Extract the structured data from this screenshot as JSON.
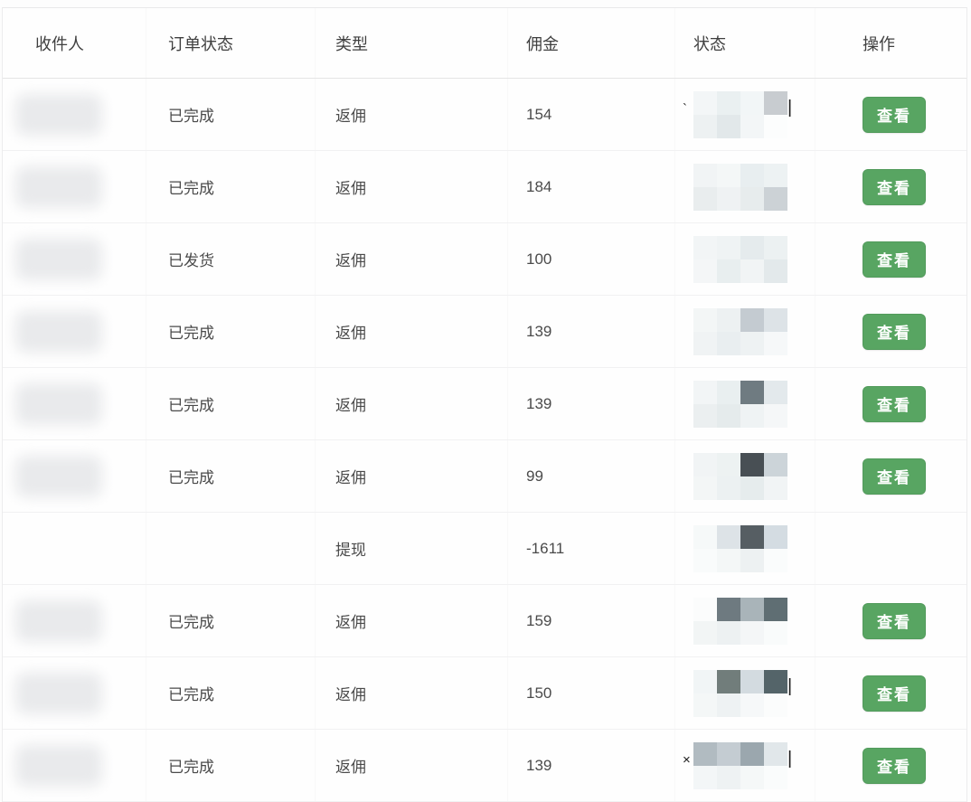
{
  "table": {
    "columns": [
      "收件人",
      "订单状态",
      "类型",
      "佣金",
      "状态",
      "操作"
    ],
    "action_label": "查看",
    "rows": [
      {
        "order_status": "已完成",
        "type": "返佣",
        "commission": "154",
        "recipient_redacted": true,
        "status_redacted": true,
        "has_action": true,
        "mark_left": "`",
        "mark_right": "|",
        "mosaic_top": [
          "#f3f6f7",
          "#eaf0f1",
          "#f2f6f7",
          "#c8ccd0"
        ],
        "mosaic_bottom": [
          "#edf1f2",
          "#e2e8ea",
          "#f3f6f7",
          "#fcfdfd"
        ]
      },
      {
        "order_status": "已完成",
        "type": "返佣",
        "commission": "184",
        "recipient_redacted": true,
        "status_redacted": true,
        "has_action": true,
        "mark_left": "",
        "mark_right": "",
        "mosaic_top": [
          "#f1f4f5",
          "#f4f7f7",
          "#e8eef0",
          "#edf2f3"
        ],
        "mosaic_bottom": [
          "#e9edee",
          "#eff2f3",
          "#e7eced",
          "#ccd2d6"
        ]
      },
      {
        "order_status": "已发货",
        "type": "返佣",
        "commission": "100",
        "recipient_redacted": true,
        "status_redacted": true,
        "has_action": true,
        "mark_left": "",
        "mark_right": "",
        "mosaic_top": [
          "#f2f5f6",
          "#eff3f4",
          "#e5ebed",
          "#ecf1f2"
        ],
        "mosaic_bottom": [
          "#f4f6f7",
          "#e8eeef",
          "#f1f4f5",
          "#e3e9eb"
        ]
      },
      {
        "order_status": "已完成",
        "type": "返佣",
        "commission": "139",
        "recipient_redacted": true,
        "status_redacted": true,
        "has_action": true,
        "mark_left": "",
        "mark_right": "",
        "mosaic_top": [
          "#f3f6f6",
          "#edf1f2",
          "#c4cbd1",
          "#dde3e7"
        ],
        "mosaic_bottom": [
          "#f0f3f4",
          "#e9eef0",
          "#eef2f3",
          "#f6f8f9"
        ]
      },
      {
        "order_status": "已完成",
        "type": "返佣",
        "commission": "139",
        "recipient_redacted": true,
        "status_redacted": true,
        "has_action": true,
        "mark_left": "",
        "mark_right": "",
        "mosaic_top": [
          "#f2f5f6",
          "#e9eff0",
          "#6f7b81",
          "#e3e9ec"
        ],
        "mosaic_bottom": [
          "#ebeff0",
          "#e5ebec",
          "#eff3f4",
          "#f5f7f8"
        ]
      },
      {
        "order_status": "已完成",
        "type": "返佣",
        "commission": "99",
        "recipient_redacted": true,
        "status_redacted": true,
        "has_action": true,
        "mark_left": "",
        "mark_right": "",
        "mosaic_top": [
          "#f1f4f5",
          "#edf2f2",
          "#484f54",
          "#ccd4d9"
        ],
        "mosaic_bottom": [
          "#f3f6f6",
          "#ecf1f2",
          "#e6eced",
          "#f1f4f5"
        ]
      },
      {
        "order_status": "",
        "type": "提现",
        "commission": "-1611",
        "recipient_redacted": false,
        "status_redacted": true,
        "has_action": false,
        "mark_left": "",
        "mark_right": "",
        "mosaic_top": [
          "#f6f9f9",
          "#dde3e7",
          "#565e63",
          "#d4dce2"
        ],
        "mosaic_bottom": [
          "#f9fbfb",
          "#f4f7f7",
          "#edf1f2",
          "#fafcfc"
        ]
      },
      {
        "order_status": "已完成",
        "type": "返佣",
        "commission": "159",
        "recipient_redacted": true,
        "status_redacted": true,
        "has_action": true,
        "mark_left": "",
        "mark_right": "",
        "mosaic_top": [
          "#fbfcfc",
          "#6e7a80",
          "#a9b4b9",
          "#5f6e73"
        ],
        "mosaic_bottom": [
          "#f2f5f5",
          "#edf1f2",
          "#f4f6f7",
          "#f9fbfb"
        ]
      },
      {
        "order_status": "已完成",
        "type": "返佣",
        "commission": "150",
        "recipient_redacted": true,
        "status_redacted": true,
        "has_action": true,
        "mark_left": "",
        "mark_right": "|",
        "mosaic_top": [
          "#f1f5f6",
          "#717d7b",
          "#d3dbe0",
          "#546469"
        ],
        "mosaic_bottom": [
          "#f4f7f7",
          "#eef2f3",
          "#f6f8f9",
          "#fbfcfc"
        ]
      },
      {
        "order_status": "已完成",
        "type": "返佣",
        "commission": "139",
        "recipient_redacted": true,
        "status_redacted": true,
        "has_action": true,
        "mark_left": "×",
        "mark_right": "|",
        "mosaic_top": [
          "#b1bbc1",
          "#c4ccd2",
          "#9ba7ae",
          "#e1e7ea"
        ],
        "mosaic_bottom": [
          "#f3f6f7",
          "#eef2f3",
          "#f5f8f8",
          "#fafcfc"
        ]
      }
    ]
  },
  "colors": {
    "accent_green": "#58a562",
    "button_text": "#ffffff",
    "header_text": "#3f3f3f",
    "cell_text": "#4a4a4a",
    "table_border": "#e9e9ea",
    "row_divider": "#f1f1f2"
  }
}
